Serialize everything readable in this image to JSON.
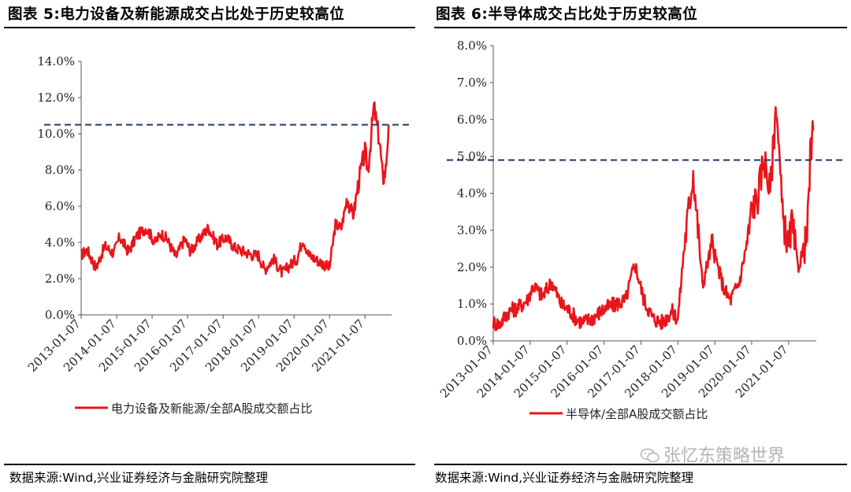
{
  "panels": [
    {
      "title": "图表 5:电力设备及新能源成交占比处于历史较高位",
      "source": "数据来源:Wind,兴业证券经济与金融研究院整理"
    },
    {
      "title": "图表 6:半导体成交占比处于历史较高位",
      "source": "数据来源:Wind,兴业证券经济与金融研究院整理"
    }
  ],
  "watermark": {
    "text": "张忆东策略世界",
    "icon": "wechat-icon"
  },
  "chart_data": [
    {
      "type": "line",
      "title": "",
      "xlabel": "",
      "ylabel": "",
      "x_ticks": [
        "2013-01-07",
        "2014-01-07",
        "2015-01-07",
        "2016-01-07",
        "2017-01-07",
        "2018-01-07",
        "2019-01-07",
        "2020-01-07",
        "2021-01-07"
      ],
      "y_ticks": [
        "0.0%",
        "2.0%",
        "4.0%",
        "6.0%",
        "8.0%",
        "10.0%",
        "12.0%",
        "14.0%"
      ],
      "ylim": [
        0,
        14
      ],
      "grid": false,
      "legend": "bottom",
      "reference_line": {
        "y": 10.5,
        "style": "dashed",
        "color": "#1f3864"
      },
      "series": [
        {
          "name": "电力设备及新能源/全部A股成交额占比",
          "color": "#e8161b",
          "x": [
            "2013-01",
            "2013-03",
            "2013-06",
            "2013-09",
            "2013-12",
            "2014-02",
            "2014-05",
            "2014-08",
            "2014-11",
            "2015-02",
            "2015-04",
            "2015-06",
            "2015-09",
            "2015-12",
            "2016-02",
            "2016-05",
            "2016-08",
            "2016-11",
            "2017-02",
            "2017-05",
            "2017-08",
            "2017-11",
            "2018-01",
            "2018-03",
            "2018-06",
            "2018-09",
            "2018-12",
            "2019-02",
            "2019-04",
            "2019-06",
            "2019-09",
            "2019-12",
            "2020-01",
            "2020-03",
            "2020-05",
            "2020-07",
            "2020-09",
            "2020-11",
            "2021-01",
            "2021-02",
            "2021-04",
            "2021-06",
            "2021-07",
            "2021-08",
            "2021-09"
          ],
          "values": [
            3.3,
            3.6,
            2.6,
            3.8,
            3.4,
            4.3,
            3.5,
            4.4,
            4.8,
            4.0,
            4.5,
            4.2,
            3.2,
            4.2,
            3.5,
            4.2,
            4.8,
            3.9,
            4.3,
            3.7,
            3.5,
            3.3,
            3.3,
            2.5,
            3.1,
            2.3,
            2.8,
            3.1,
            4.2,
            3.3,
            3.0,
            2.7,
            2.6,
            5.0,
            4.8,
            6.5,
            5.5,
            7.5,
            9.0,
            8.0,
            11.5,
            9.5,
            7.5,
            8.0,
            10.5
          ]
        }
      ]
    },
    {
      "type": "line",
      "title": "",
      "xlabel": "",
      "ylabel": "",
      "x_ticks": [
        "2013-01-07",
        "2014-01-07",
        "2015-01-07",
        "2016-01-07",
        "2017-01-07",
        "2018-01-07",
        "2019-01-07",
        "2020-01-07",
        "2021-01-07"
      ],
      "y_ticks": [
        "0.0%",
        "1.0%",
        "2.0%",
        "3.0%",
        "4.0%",
        "5.0%",
        "6.0%",
        "7.0%",
        "8.0%"
      ],
      "ylim": [
        0,
        8
      ],
      "grid": false,
      "legend": "bottom",
      "reference_line": {
        "y": 4.9,
        "style": "dashed",
        "color": "#1f3864"
      },
      "series": [
        {
          "name": "半导体/全部A股成交额占比",
          "color": "#e8161b",
          "x": [
            "2013-01",
            "2013-03",
            "2013-06",
            "2013-09",
            "2013-12",
            "2014-02",
            "2014-05",
            "2014-08",
            "2014-11",
            "2015-02",
            "2015-04",
            "2015-06",
            "2015-09",
            "2015-12",
            "2016-02",
            "2016-05",
            "2016-08",
            "2016-11",
            "2017-02",
            "2017-05",
            "2017-08",
            "2017-11",
            "2018-01",
            "2018-03",
            "2018-06",
            "2018-09",
            "2018-12",
            "2019-02",
            "2019-04",
            "2019-06",
            "2019-09",
            "2019-12",
            "2020-01",
            "2020-03",
            "2020-05",
            "2020-07",
            "2020-09",
            "2020-11",
            "2021-01",
            "2021-02",
            "2021-04",
            "2021-06",
            "2021-07",
            "2021-08",
            "2021-09"
          ],
          "values": [
            0.5,
            0.45,
            0.8,
            0.9,
            1.1,
            1.5,
            1.2,
            1.6,
            1.0,
            0.8,
            0.6,
            0.5,
            0.6,
            0.8,
            0.9,
            1.0,
            1.1,
            2.1,
            1.1,
            0.6,
            0.5,
            0.8,
            0.6,
            2.5,
            4.6,
            1.5,
            2.6,
            2.0,
            1.4,
            1.1,
            1.6,
            2.9,
            3.6,
            3.9,
            5.0,
            4.0,
            6.5,
            3.4,
            2.5,
            3.2,
            2.0,
            2.5,
            2.8,
            4.9,
            5.7
          ]
        }
      ]
    }
  ]
}
